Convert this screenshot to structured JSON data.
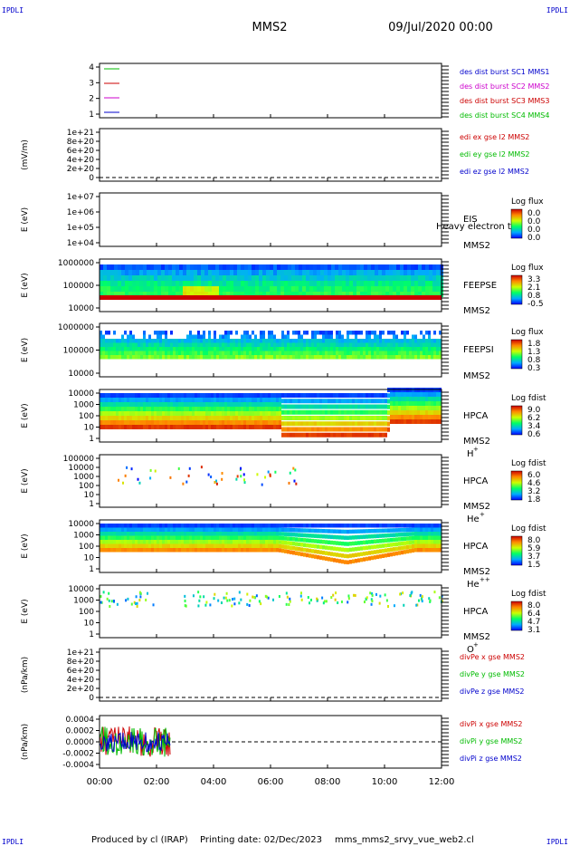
{
  "header": {
    "corner_left_top": "IPDLI",
    "corner_right_top": "IPDLI",
    "corner_left_bottom": "IPDLI",
    "corner_right_bottom": "IPDLI",
    "title": "MMS2",
    "date": "09/Jul/2020 00:00"
  },
  "footer": {
    "produced": "Produced by cl (IRAP)",
    "printing": "Printing date: 02/Dec/2023",
    "filename": "mms_mms2_srvy_vue_web2.cl"
  },
  "chart_data": {
    "type": "heatmap",
    "x_ticks": [
      "00:00",
      "02:00",
      "04:00",
      "06:00",
      "08:00",
      "10:00",
      "12:00"
    ],
    "x_range_hours": [
      0,
      12
    ],
    "panels": [
      {
        "id": "burst",
        "ylabel": "",
        "yticks": [
          "4",
          "3",
          "2",
          "1"
        ],
        "legend": [
          {
            "text": "des dist burst SC1 MMS1",
            "color": "#0000cc"
          },
          {
            "text": "des dist burst SC2 MMS2",
            "color": "#cc00cc"
          },
          {
            "text": "des dist burst SC3 MMS3",
            "color": "#cc0000"
          },
          {
            "text": "des dist burst SC4 MMS4",
            "color": "#00bb00"
          }
        ],
        "line_colors": [
          "#00bb00",
          "#cc0000",
          "#cc00cc",
          "#0000cc"
        ]
      },
      {
        "id": "edi",
        "ylabel": "(mV/m)",
        "yticks": [
          "1e+21",
          "8e+20",
          "6e+20",
          "4e+20",
          "2e+20",
          "0"
        ],
        "legend": [
          {
            "text": "edi ex gse l2 MMS2",
            "color": "#cc0000"
          },
          {
            "text": "edi ey gse l2 MMS2",
            "color": "#00bb00"
          },
          {
            "text": "edi ez gse l2 MMS2",
            "color": "#0000cc"
          }
        ]
      },
      {
        "id": "eis",
        "ylabel": "E (eV)",
        "yticks": [
          "1e+07",
          "1e+06",
          "1e+05",
          "1e+04"
        ],
        "instrument": "EIS",
        "overlay": "Heavy electron to",
        "sc": "MMS2",
        "colorbar_title": "Log flux",
        "colorbar_ticks": [
          "0.0",
          "0.0",
          "0.0",
          "0.0"
        ]
      },
      {
        "id": "feepse",
        "ylabel": "E (eV)",
        "yticks": [
          "1000000",
          "100000",
          "10000"
        ],
        "instrument": "FEEPSE",
        "sc": "MMS2",
        "colorbar_title": "Log flux",
        "colorbar_ticks": [
          "3.3",
          "2.1",
          "0.8",
          "-0.5"
        ]
      },
      {
        "id": "feepsi",
        "ylabel": "E (eV)",
        "yticks": [
          "1000000",
          "100000",
          "10000"
        ],
        "instrument": "FEEPSI",
        "sc": "MMS2",
        "colorbar_title": "Log flux",
        "colorbar_ticks": [
          "1.8",
          "1.3",
          "0.8",
          "0.3"
        ]
      },
      {
        "id": "hpca_h",
        "ylabel": "E (eV)",
        "yticks": [
          "10000",
          "1000",
          "100",
          "10",
          "1"
        ],
        "instrument": "HPCA",
        "sc": "MMS2",
        "species": "H",
        "species_sup": "+",
        "colorbar_title": "Log fdist",
        "colorbar_ticks": [
          "9.0",
          "6.2",
          "3.4",
          "0.6"
        ]
      },
      {
        "id": "hpca_he",
        "ylabel": "E (eV)",
        "yticks": [
          "100000",
          "10000",
          "1000",
          "100",
          "10",
          "1"
        ],
        "instrument": "HPCA",
        "sc": "MMS2",
        "species": "He",
        "species_sup": "+",
        "colorbar_title": "Log fdist",
        "colorbar_ticks": [
          "6.0",
          "4.6",
          "3.2",
          "1.8"
        ]
      },
      {
        "id": "hpca_hepp",
        "ylabel": "E (eV)",
        "yticks": [
          "10000",
          "1000",
          "100",
          "10",
          "1"
        ],
        "instrument": "HPCA",
        "sc": "MMS2",
        "species": "He",
        "species_sup": "++",
        "colorbar_title": "Log fdist",
        "colorbar_ticks": [
          "8.0",
          "5.9",
          "3.7",
          "1.5"
        ]
      },
      {
        "id": "hpca_o",
        "ylabel": "E (eV)",
        "yticks": [
          "10000",
          "1000",
          "100",
          "10",
          "1"
        ],
        "instrument": "HPCA",
        "sc": "MMS2",
        "species": "O",
        "species_sup": "+",
        "colorbar_title": "Log fdist",
        "colorbar_ticks": [
          "8.0",
          "6.4",
          "4.7",
          "3.1"
        ]
      },
      {
        "id": "divpe",
        "ylabel": "(nPa/km)",
        "yticks": [
          "1e+21",
          "8e+20",
          "6e+20",
          "4e+20",
          "2e+20",
          "0"
        ],
        "legend": [
          {
            "text": "divPe x gse MMS2",
            "color": "#cc0000"
          },
          {
            "text": "divPe y gse MMS2",
            "color": "#00bb00"
          },
          {
            "text": "divPe z gse MMS2",
            "color": "#0000cc"
          }
        ]
      },
      {
        "id": "divpi",
        "ylabel": "(nPa/km)",
        "yticks": [
          "0.0004",
          "0.0002",
          "0.0000",
          "-0.0002",
          "-0.0004"
        ],
        "legend": [
          {
            "text": "divPi x gse MMS2",
            "color": "#cc0000"
          },
          {
            "text": "divPi y gse MMS2",
            "color": "#00bb00"
          },
          {
            "text": "divPi z gse MMS2",
            "color": "#0000cc"
          }
        ]
      }
    ]
  }
}
